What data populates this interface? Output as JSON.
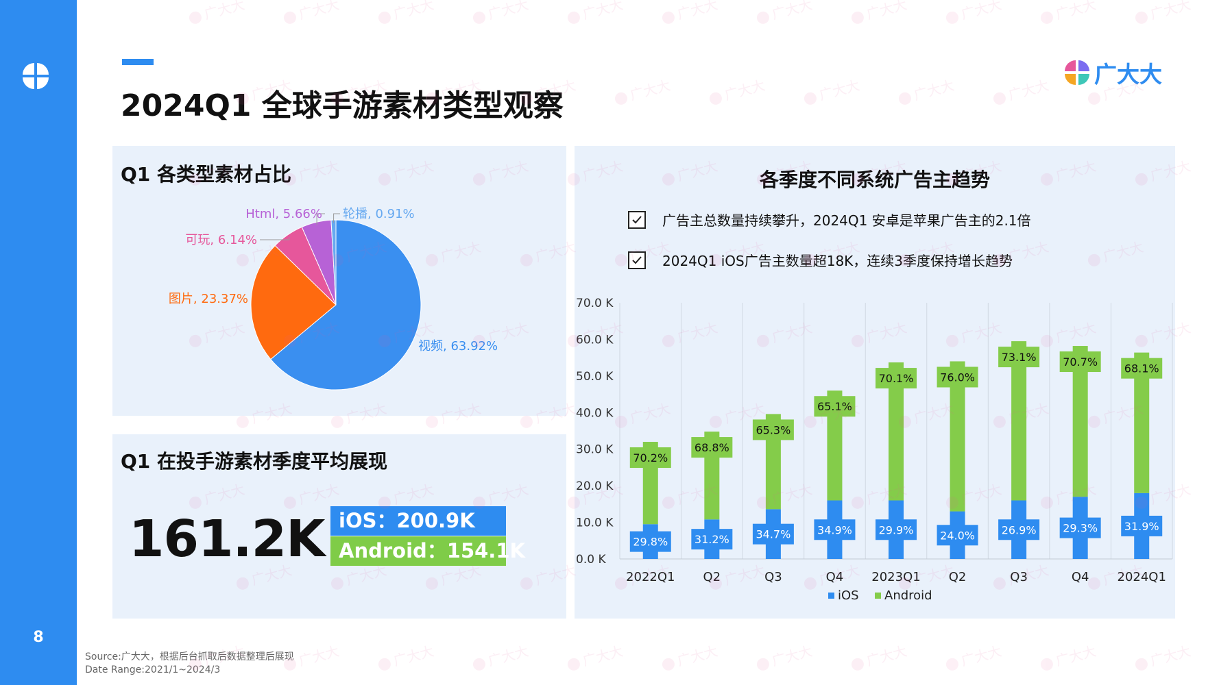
{
  "page": {
    "title": "2024Q1 全球手游素材类型观察",
    "page_number": "8",
    "brand_name": "广大大",
    "watermark_text": "广大大",
    "source_line1": "Source:广大大，根据后台抓取后数据整理后展现",
    "source_line2": "Date Range:2021/1~2024/3",
    "accent_color": "#2e8cf0"
  },
  "pie_panel": {
    "title": "Q1 各类型素材占比"
  },
  "avg_panel": {
    "title": "Q1 在投手游素材季度平均展现",
    "total": "161.2K",
    "ios_label": "iOS：200.9K",
    "android_label": "Android：154.1K"
  },
  "trend_panel": {
    "title": "各季度不同系统广告主趋势",
    "bullets": [
      "广告主总数量持续攀升，2024Q1 安卓是苹果广告主的2.1倍",
      "2024Q1 iOS广告主数量超18K，连续3季度保持增长趋势"
    ]
  },
  "chart_data": [
    {
      "type": "pie",
      "title": "",
      "slices": [
        {
          "name": "视频",
          "value": 63.92,
          "label": "视频, 63.92%",
          "color": "#3a8ff0"
        },
        {
          "name": "图片",
          "value": 23.37,
          "label": "图片, 23.37%",
          "color": "#ff6a0f"
        },
        {
          "name": "可玩",
          "value": 6.14,
          "label": "可玩, 6.14%",
          "color": "#e6579b"
        },
        {
          "name": "Html",
          "value": 5.66,
          "label": "Html, 5.66%",
          "color": "#b762d6"
        },
        {
          "name": "轮播",
          "value": 0.91,
          "label": "轮播, 0.91%",
          "color": "#67a9f0"
        }
      ],
      "start_angle_deg": 0,
      "direction": "clockwise"
    },
    {
      "type": "bar",
      "title": "",
      "stacked": true,
      "categories": [
        "2022Q1",
        "Q2",
        "Q3",
        "Q4",
        "2023Q1",
        "Q2",
        "Q3",
        "Q4",
        "2024Q1"
      ],
      "series": [
        {
          "name": "iOS",
          "color": "#2e8cf0",
          "values": [
            9.5,
            10.8,
            13.6,
            16.0,
            16.0,
            13.0,
            16.0,
            17.0,
            18.0
          ],
          "labels": [
            "29.8%",
            "31.2%",
            "34.7%",
            "34.9%",
            "29.9%",
            "24.0%",
            "26.9%",
            "29.3%",
            "31.9%"
          ]
        },
        {
          "name": "Android",
          "color": "#84cc4a",
          "values": [
            22.5,
            24.0,
            26.0,
            30.0,
            37.7,
            41.0,
            43.5,
            41.2,
            38.4
          ],
          "labels": [
            "70.2%",
            "68.8%",
            "65.3%",
            "65.1%",
            "70.1%",
            "76.0%",
            "73.1%",
            "70.7%",
            "68.1%"
          ]
        }
      ],
      "y_ticks": [
        "0.0 K",
        "10.0 K",
        "20.0 K",
        "30.0 K",
        "40.0 K",
        "50.0 K",
        "60.0 K",
        "70.0 K"
      ],
      "ylim": [
        0,
        70
      ],
      "grid": "vertical",
      "legend_position": "bottom"
    }
  ]
}
